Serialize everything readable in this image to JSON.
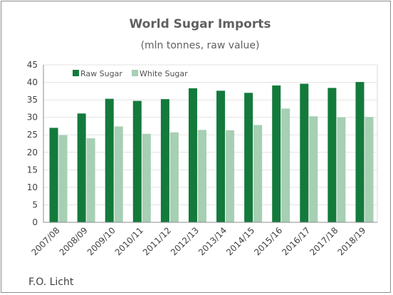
{
  "chart_data": {
    "type": "bar",
    "title": "World Sugar Imports",
    "subtitle": "(mln tonnes, raw value)",
    "xlabel": "",
    "ylabel": "",
    "ylim": [
      0,
      45
    ],
    "yticks": [
      0,
      5,
      10,
      15,
      20,
      25,
      30,
      35,
      40,
      45
    ],
    "grid": true,
    "legend_position": "top-left",
    "categories": [
      "2007/08",
      "2008/09",
      "2009/10",
      "2010/11",
      "2011/12",
      "2012/13",
      "2013/14",
      "2014/15",
      "2015/16",
      "2016/17",
      "2017/18",
      "2018/19"
    ],
    "series": [
      {
        "name": "Raw Sugar",
        "color": "#137a3c",
        "values": [
          27.0,
          31.1,
          35.3,
          34.7,
          35.2,
          38.3,
          37.6,
          37.0,
          39.1,
          39.6,
          38.4,
          40.1
        ]
      },
      {
        "name": "White Sugar",
        "color": "#a6cfb4",
        "values": [
          24.9,
          24.0,
          27.4,
          25.3,
          25.7,
          26.4,
          26.3,
          27.8,
          32.5,
          30.3,
          30.0,
          30.1
        ]
      }
    ]
  },
  "source": "F.O. Licht"
}
